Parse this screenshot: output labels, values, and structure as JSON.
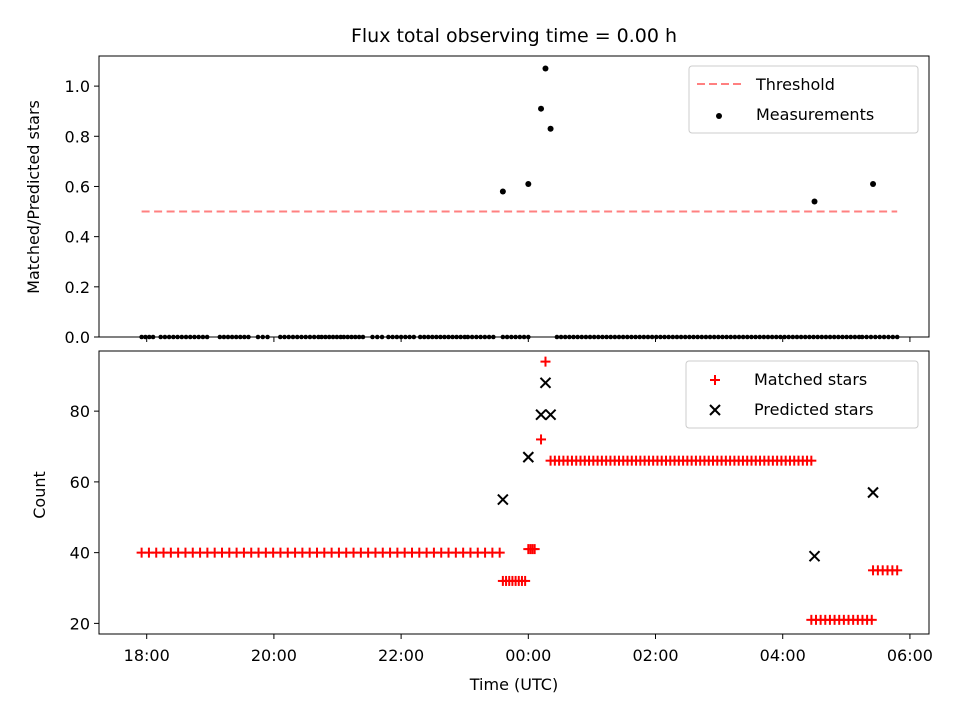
{
  "chart_data": [
    {
      "type": "scatter",
      "title": "Flux total observing time = 0.00 h",
      "xlabel": "",
      "ylabel": "Matched/Predicted stars",
      "ylim": [
        0.0,
        1.12
      ],
      "yticks": [
        0.0,
        0.2,
        0.4,
        0.6,
        0.8,
        1.0
      ],
      "ytick_labels": [
        "0.0",
        "0.2",
        "0.4",
        "0.6",
        "0.8",
        "1.0"
      ],
      "threshold": {
        "value": 0.5,
        "x_start": 17.92,
        "x_end": 29.8,
        "color": "#ff8080",
        "style": "dashed"
      },
      "legend": {
        "position": "top-right",
        "entries": [
          "Threshold",
          "Measurements"
        ]
      },
      "series": [
        {
          "name": "Measurements",
          "color": "#000000",
          "marker": "dot",
          "zero_segments": [
            [
              17.92,
              18.1
            ],
            [
              18.22,
              18.95
            ],
            [
              19.15,
              19.6
            ],
            [
              19.75,
              19.9
            ],
            [
              20.1,
              20.7
            ],
            [
              20.75,
              21.05
            ],
            [
              21.1,
              21.4
            ],
            [
              21.55,
              21.7
            ],
            [
              21.8,
              22.2
            ],
            [
              22.3,
              23.0
            ],
            [
              23.05,
              23.45
            ],
            [
              23.6,
              24.0
            ],
            [
              24.45,
              29.2
            ],
            [
              29.25,
              29.8
            ]
          ],
          "points": [
            [
              23.6,
              0.58
            ],
            [
              24.0,
              0.61
            ],
            [
              24.2,
              0.91
            ],
            [
              24.27,
              1.07
            ],
            [
              24.35,
              0.83
            ],
            [
              28.5,
              0.54
            ],
            [
              29.42,
              0.61
            ]
          ]
        }
      ]
    },
    {
      "type": "scatter",
      "title": "",
      "xlabel": "Time (UTC)",
      "ylabel": "Count",
      "ylim": [
        17,
        97
      ],
      "xlim": [
        17.25,
        30.3
      ],
      "yticks": [
        20,
        40,
        60,
        80
      ],
      "ytick_labels": [
        "20",
        "40",
        "60",
        "80"
      ],
      "xticks": [
        18,
        20,
        22,
        24,
        26,
        28,
        30
      ],
      "xtick_labels": [
        "18:00",
        "20:00",
        "22:00",
        "00:00",
        "02:00",
        "04:00",
        "06:00"
      ],
      "legend": {
        "position": "top-right",
        "entries": [
          "Matched stars",
          "Predicted stars"
        ]
      },
      "series": [
        {
          "name": "Matched stars",
          "color": "#ff0000",
          "marker": "plus",
          "segments": [
            {
              "x_start": 17.92,
              "x_end": 23.55,
              "y": 40,
              "count": 50
            },
            {
              "x_start": 23.6,
              "x_end": 23.95,
              "y": 32,
              "count": 8
            },
            {
              "x_start": 24.0,
              "x_end": 24.1,
              "y": 41,
              "count": 4
            },
            {
              "x_start": 24.35,
              "x_end": 28.45,
              "y": 66,
              "count": 62
            },
            {
              "x_start": 28.45,
              "x_end": 29.4,
              "y": 21,
              "count": 14
            },
            {
              "x_start": 29.42,
              "x_end": 29.8,
              "y": 35,
              "count": 6
            }
          ],
          "points": [
            [
              24.2,
              72
            ],
            [
              24.27,
              94
            ]
          ]
        },
        {
          "name": "Predicted stars",
          "color": "#000000",
          "marker": "x",
          "points": [
            [
              23.6,
              55
            ],
            [
              24.0,
              67
            ],
            [
              24.2,
              79
            ],
            [
              24.27,
              88
            ],
            [
              24.35,
              79
            ],
            [
              28.5,
              39
            ],
            [
              29.42,
              57
            ]
          ]
        }
      ]
    }
  ]
}
